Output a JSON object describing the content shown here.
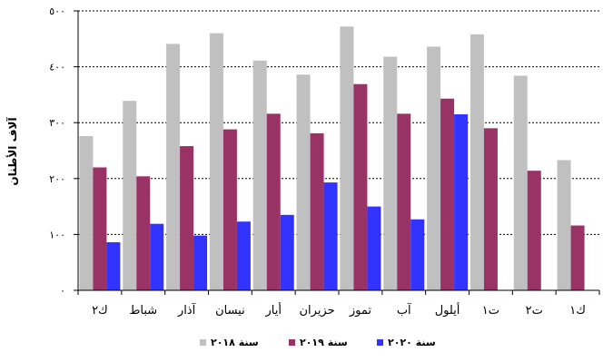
{
  "chart_data": {
    "type": "bar",
    "title": "",
    "xlabel": "",
    "ylabel": "آلاف الأطنان",
    "ylim": [
      0,
      500
    ],
    "yticks": [
      0,
      100,
      200,
      300,
      400,
      500
    ],
    "ytick_labels": [
      "٠",
      "١٠٠",
      "٢٠٠",
      "٣٠٠",
      "٤٠٠",
      "٥٠٠"
    ],
    "grid": true,
    "legend_position": "bottom",
    "categories": [
      "ك٢",
      "شباط",
      "آذار",
      "نيسان",
      "أيار",
      "حزيران",
      "تموز",
      "آب",
      "أيلول",
      "ت١",
      "ت٢",
      "ك١"
    ],
    "series": [
      {
        "name": "سنة ٢٠١٨",
        "color": "#c0c0c0",
        "values": [
          276,
          339,
          441,
          460,
          411,
          386,
          472,
          418,
          436,
          458,
          384,
          233
        ]
      },
      {
        "name": "سنة ٢٠١٩",
        "color": "#993366",
        "values": [
          220,
          204,
          258,
          288,
          316,
          281,
          369,
          316,
          343,
          290,
          214,
          116
        ]
      },
      {
        "name": "سنة ٢٠٢٠",
        "color": "#3333ff",
        "values": [
          86,
          119,
          98,
          123,
          135,
          193,
          150,
          127,
          315,
          null,
          null,
          null
        ]
      }
    ]
  }
}
